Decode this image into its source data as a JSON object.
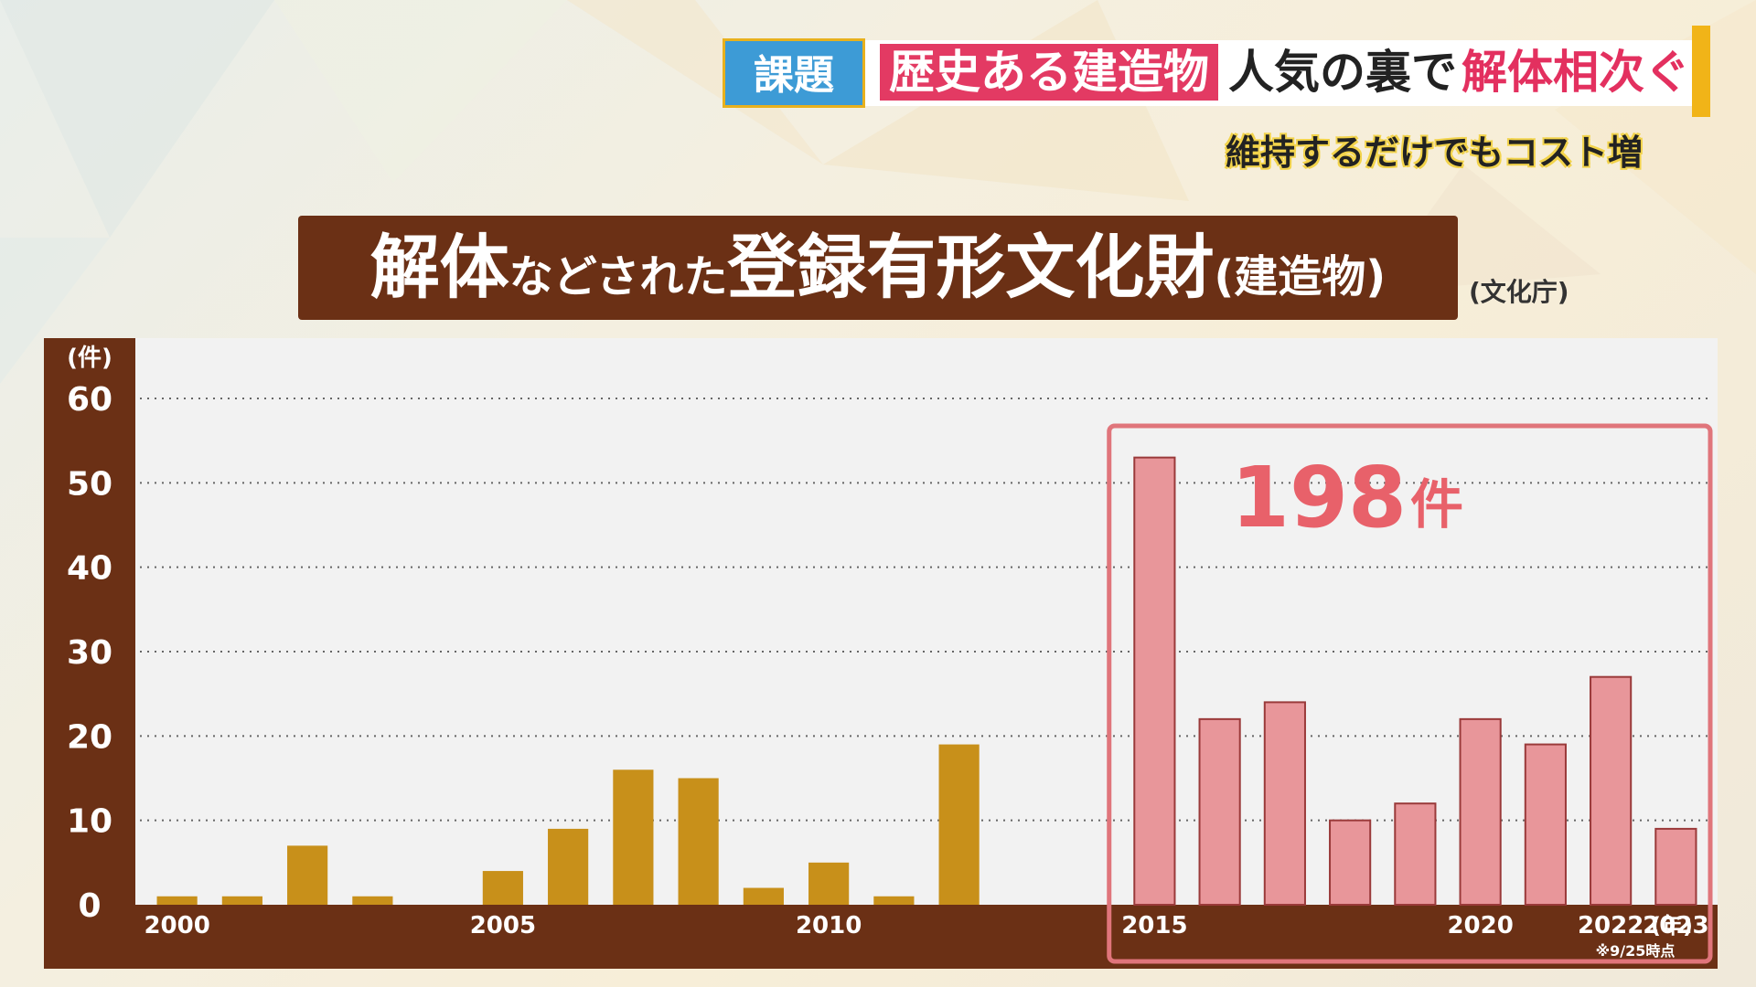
{
  "banner": {
    "tag": "課題",
    "highlight1": "歴史ある建造物",
    "middle": "人気の裏で",
    "highlight2": "解体相次ぐ"
  },
  "subtitle": "維持するだけでもコスト増",
  "chart_title": {
    "part1": "解体",
    "part2": "などされた",
    "part3": "登録有形文化財",
    "part4": "(建造物)"
  },
  "source": "(文化庁)",
  "colors": {
    "normal_bar": "#c8901a",
    "highlight_bar": "#e8969a",
    "highlight_frame": "#e0757b",
    "axis_band": "#6b3015",
    "total_text": "#e8616a"
  },
  "chart_data": {
    "type": "bar",
    "unit": "(件)",
    "x_unit": "(年)",
    "note": "※9/25時点",
    "ylim": [
      0,
      60
    ],
    "yticks": [
      0,
      10,
      20,
      30,
      40,
      50,
      60
    ],
    "categories": [
      2000,
      2001,
      2002,
      2003,
      2004,
      2005,
      2006,
      2007,
      2008,
      2009,
      2010,
      2011,
      2012,
      2013,
      2014,
      2015,
      2016,
      2017,
      2018,
      2019,
      2020,
      2021,
      2022,
      2023
    ],
    "values": [
      1,
      1,
      7,
      1,
      0,
      4,
      9,
      16,
      15,
      2,
      5,
      1,
      19,
      null,
      null,
      53,
      22,
      24,
      10,
      12,
      22,
      19,
      27,
      9
    ],
    "tick_labels": {
      "2000": "2000",
      "2005": "2005",
      "2010": "2010",
      "2015": "2015",
      "2020": "2020",
      "2022": "2022",
      "2023": "2023"
    },
    "highlight_range": [
      2015,
      2023
    ],
    "highlight_total": "198",
    "highlight_total_unit": "件",
    "grid": true
  }
}
